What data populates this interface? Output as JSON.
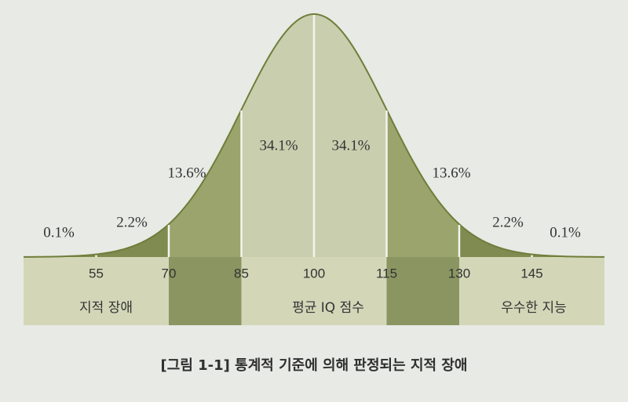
{
  "chart_data": {
    "type": "normal",
    "title": "[그림 1-1] 통계적 기준에 의해 판정되는 지적 장애",
    "xlim": [
      40,
      160
    ],
    "xticks": [
      55,
      70,
      85,
      100,
      115,
      130,
      145
    ],
    "segments": {
      "values": [
        0.1,
        2.2,
        13.6,
        34.1,
        34.1,
        13.6,
        2.2,
        0.1
      ],
      "value_labels": [
        "0.1%",
        "2.2%",
        "13.6%",
        "34.1%",
        "34.1%",
        "13.6%",
        "2.2%",
        "0.1%"
      ],
      "colors": [
        "#7f8b50",
        "#7f8b50",
        "#9aa46c",
        "#c9ceae",
        "#c9ceae",
        "#9aa46c",
        "#7f8b50",
        "#7f8b50"
      ]
    },
    "bands": [
      "지적 장애",
      "평균 IQ 점수",
      "우수한 지능"
    ],
    "band_colors": {
      "light": "#d3d7b8",
      "dark": "#8b9561"
    }
  }
}
